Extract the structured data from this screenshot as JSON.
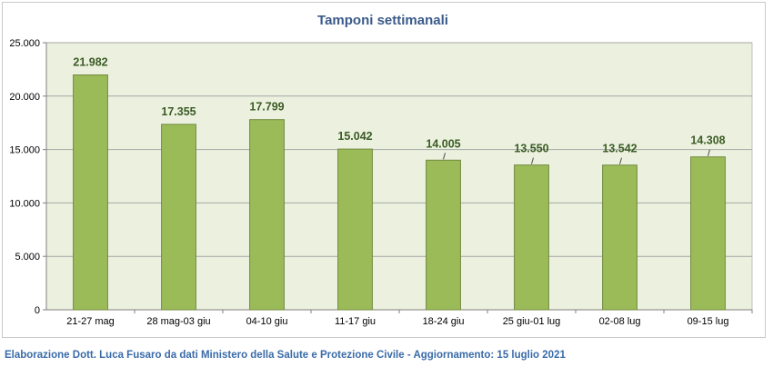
{
  "colors": {
    "bar_fill": "#9bbb59",
    "bar_stroke": "#71893f",
    "plot_bg": "#ebf1de",
    "grid": "#a6a6a6",
    "title": "#3a5a8a",
    "data_label": "#3b5b25",
    "footer": "#3a6ba8"
  },
  "chart_data": {
    "type": "bar",
    "title": "Tamponi settimanali",
    "xlabel": "",
    "ylabel": "",
    "categories": [
      "21-27 mag",
      "28 mag-03 giu",
      "04-10 giu",
      "11-17 giu",
      "18-24 giu",
      "25 giu-01 lug",
      "02-08 lug",
      "09-15 lug"
    ],
    "values": [
      21982,
      17355,
      17799,
      15042,
      14005,
      13550,
      13542,
      14308
    ],
    "value_labels": [
      "21.982",
      "17.355",
      "17.799",
      "15.042",
      "14.005",
      "13.550",
      "13.542",
      "14.308"
    ],
    "ylim": [
      0,
      25000
    ],
    "yticks": [
      0,
      5000,
      10000,
      15000,
      20000,
      25000
    ],
    "ytick_labels": [
      "0",
      "5.000",
      "10.000",
      "15.000",
      "20.000",
      "25.000"
    ],
    "grid": true,
    "legend": "none"
  },
  "footer": {
    "text": "Elaborazione Dott. Luca Fusaro da dati Ministero della Salute e Protezione Civile - Aggiornamento: 15 luglio 2021"
  }
}
